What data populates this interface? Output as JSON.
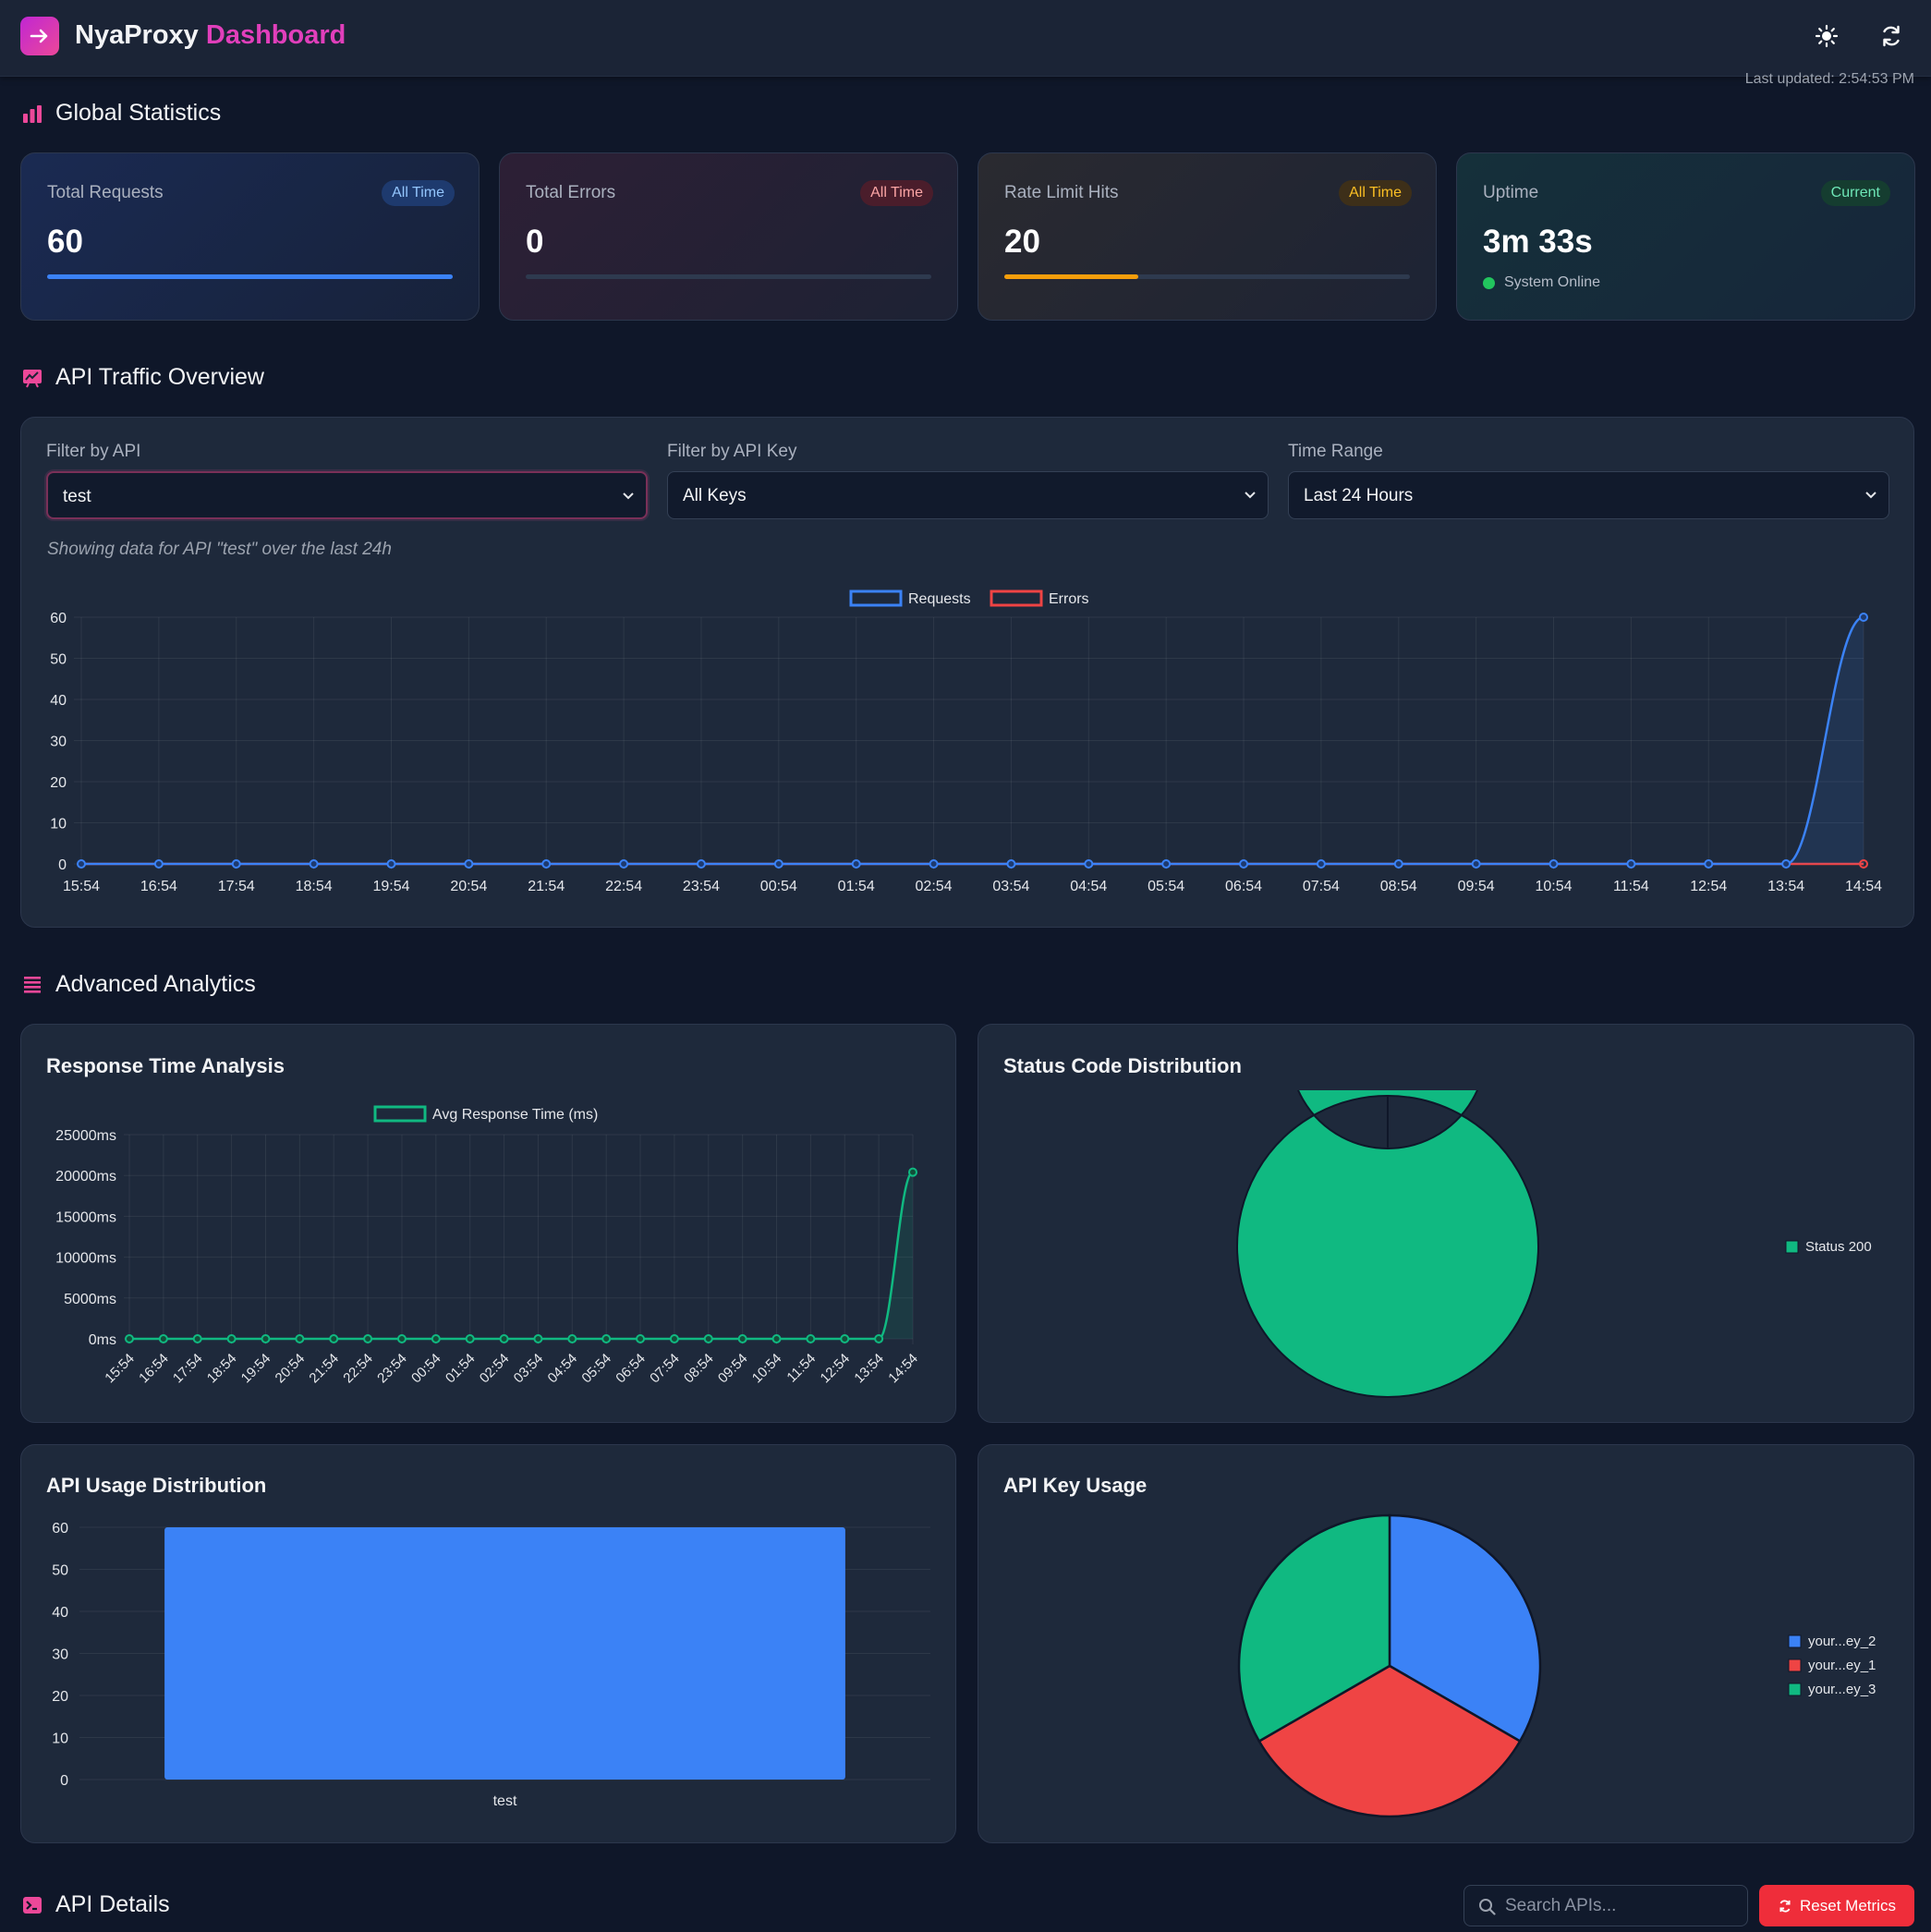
{
  "header": {
    "app_name": "NyaProxy",
    "app_accent": "Dashboard",
    "last_updated": "Last updated: 2:54:53 PM"
  },
  "global_stats": {
    "title": "Global Statistics",
    "cards": [
      {
        "label": "Total Requests",
        "badge": "All Time",
        "value": "60",
        "bar_fill_pct": 100,
        "color": "#3b82f6"
      },
      {
        "label": "Total Errors",
        "badge": "All Time",
        "value": "0",
        "bar_fill_pct": 0,
        "color": "#ef4444"
      },
      {
        "label": "Rate Limit Hits",
        "badge": "All Time",
        "value": "20",
        "bar_fill_pct": 33,
        "color": "#f59e0b"
      },
      {
        "label": "Uptime",
        "badge": "Current",
        "value": "3m 33s",
        "status": "System Online",
        "color": "#22c55e"
      }
    ]
  },
  "traffic": {
    "title": "API Traffic Overview",
    "filters": [
      {
        "label": "Filter by API",
        "value": "test"
      },
      {
        "label": "Filter by API Key",
        "value": "All Keys"
      },
      {
        "label": "Time Range",
        "value": "Last 24 Hours"
      }
    ],
    "showing": "Showing data for API \"test\" over the last 24h"
  },
  "analytics": {
    "title": "Advanced Analytics",
    "response_time_title": "Response Time Analysis",
    "status_code_title": "Status Code Distribution",
    "api_usage_title": "API Usage Distribution",
    "api_key_usage_title": "API Key Usage"
  },
  "details": {
    "title": "API Details",
    "search_placeholder": "Search APIs...",
    "reset_label": "Reset Metrics"
  },
  "colors": {
    "accent": "#ec4899",
    "requests": "#3b82f6",
    "errors": "#ef4444",
    "success": "#10b981"
  },
  "chart_data": [
    {
      "type": "line",
      "x": [
        "15:54",
        "16:54",
        "17:54",
        "18:54",
        "19:54",
        "20:54",
        "21:54",
        "22:54",
        "23:54",
        "00:54",
        "01:54",
        "02:54",
        "03:54",
        "04:54",
        "05:54",
        "06:54",
        "07:54",
        "08:54",
        "09:54",
        "10:54",
        "11:54",
        "12:54",
        "13:54",
        "14:54"
      ],
      "series": [
        {
          "name": "Requests",
          "color": "#3b82f6",
          "values": [
            0,
            0,
            0,
            0,
            0,
            0,
            0,
            0,
            0,
            0,
            0,
            0,
            0,
            0,
            0,
            0,
            0,
            0,
            0,
            0,
            0,
            0,
            0,
            60
          ]
        },
        {
          "name": "Errors",
          "color": "#ef4444",
          "values": [
            0,
            0,
            0,
            0,
            0,
            0,
            0,
            0,
            0,
            0,
            0,
            0,
            0,
            0,
            0,
            0,
            0,
            0,
            0,
            0,
            0,
            0,
            0,
            0
          ]
        }
      ],
      "ylim": [
        0,
        60
      ],
      "yticks": [
        0,
        10,
        20,
        30,
        40,
        50,
        60
      ],
      "legend": "top-center",
      "grid": true
    },
    {
      "type": "line",
      "x": [
        "15:54",
        "16:54",
        "17:54",
        "18:54",
        "19:54",
        "20:54",
        "21:54",
        "22:54",
        "23:54",
        "00:54",
        "01:54",
        "02:54",
        "03:54",
        "04:54",
        "05:54",
        "06:54",
        "07:54",
        "08:54",
        "09:54",
        "10:54",
        "11:54",
        "12:54",
        "13:54",
        "14:54"
      ],
      "series": [
        {
          "name": "Avg Response Time (ms)",
          "color": "#10b981",
          "values": [
            0,
            0,
            0,
            0,
            0,
            0,
            0,
            0,
            0,
            0,
            0,
            0,
            0,
            0,
            0,
            0,
            0,
            0,
            0,
            0,
            0,
            0,
            0,
            20400
          ]
        }
      ],
      "ylim": [
        0,
        25000
      ],
      "yticks": [
        "0ms",
        "5000ms",
        "10000ms",
        "15000ms",
        "20000ms",
        "25000ms"
      ],
      "legend": "top-center",
      "grid": true
    },
    {
      "type": "pie",
      "donut": true,
      "labels": [
        "Status 200"
      ],
      "values": [
        100
      ],
      "colors": [
        "#10b981"
      ],
      "legend": "right"
    },
    {
      "type": "bar",
      "categories": [
        "test"
      ],
      "values": [
        60
      ],
      "color": "#3b82f6",
      "ylim": [
        0,
        60
      ],
      "yticks": [
        0,
        10,
        20,
        30,
        40,
        50,
        60
      ],
      "grid": true
    },
    {
      "type": "pie",
      "labels": [
        "your...ey_2",
        "your...ey_1",
        "your...ey_3"
      ],
      "values": [
        20,
        20,
        20
      ],
      "colors": [
        "#3b82f6",
        "#ef4444",
        "#10b981"
      ],
      "legend": "right"
    }
  ]
}
